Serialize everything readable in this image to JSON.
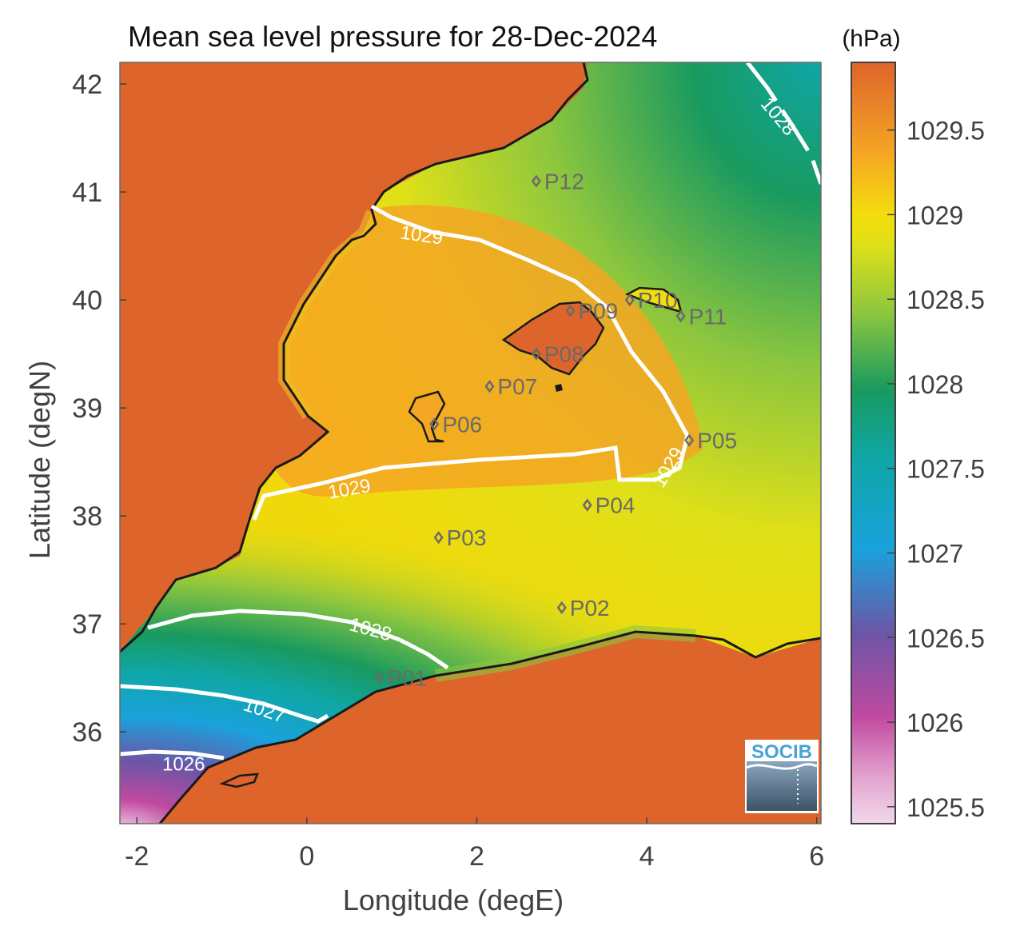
{
  "title": "Mean sea level pressure for 28-Dec-2024",
  "xlabel": "Longitude (degE)",
  "ylabel": "Latitude (degN)",
  "colorbar": {
    "unit": "(hPa)",
    "ticks": [
      "1029.5",
      "1029",
      "1028.5",
      "1028",
      "1027.5",
      "1027",
      "1026.5",
      "1026",
      "1025.5"
    ],
    "tick_values": [
      1029.5,
      1029,
      1028.5,
      1028,
      1027.5,
      1027,
      1026.5,
      1026,
      1025.5
    ],
    "range": [
      1025.4,
      1029.9
    ]
  },
  "x_ticks": [
    "-2",
    "0",
    "2",
    "4",
    "6"
  ],
  "x_tick_values": [
    -2,
    0,
    2,
    4,
    6
  ],
  "y_ticks": [
    "42",
    "41",
    "40",
    "39",
    "38",
    "37",
    "36"
  ],
  "y_tick_values": [
    42,
    41,
    40,
    39,
    38,
    37,
    36
  ],
  "xlim": [
    -2.2,
    6.05
  ],
  "ylim": [
    35.15,
    42.2
  ],
  "logo_text": "SOCIB",
  "stations": [
    {
      "label": "P01",
      "lon": 0.85,
      "lat": 36.5
    },
    {
      "label": "P02",
      "lon": 3.0,
      "lat": 37.15
    },
    {
      "label": "P03",
      "lon": 1.55,
      "lat": 37.8
    },
    {
      "label": "P04",
      "lon": 3.3,
      "lat": 38.1
    },
    {
      "label": "P05",
      "lon": 4.5,
      "lat": 38.7
    },
    {
      "label": "P06",
      "lon": 1.5,
      "lat": 38.85
    },
    {
      "label": "P07",
      "lon": 2.15,
      "lat": 39.2
    },
    {
      "label": "P08",
      "lon": 2.7,
      "lat": 39.5
    },
    {
      "label": "P09",
      "lon": 3.1,
      "lat": 39.9
    },
    {
      "label": "P10",
      "lon": 3.8,
      "lat": 40.0
    },
    {
      "label": "P11",
      "lon": 4.4,
      "lat": 39.85
    },
    {
      "label": "P12",
      "lon": 2.7,
      "lat": 41.1
    }
  ],
  "contour_labels": [
    {
      "text": "1029",
      "lon": 1.35,
      "lat": 40.6,
      "rot": 8
    },
    {
      "text": "1029",
      "lon": 0.5,
      "lat": 38.25,
      "rot": -10
    },
    {
      "text": "1029",
      "lon": 4.25,
      "lat": 38.45,
      "rot": -60
    },
    {
      "text": "1028",
      "lon": 0.75,
      "lat": 36.95,
      "rot": 15
    },
    {
      "text": "1028",
      "lon": 5.55,
      "lat": 41.7,
      "rot": 50
    },
    {
      "text": "1027",
      "lon": -0.5,
      "lat": 36.2,
      "rot": 18
    },
    {
      "text": "1026",
      "lon": -1.45,
      "lat": 35.7,
      "rot": 0
    }
  ],
  "colors": {
    "land": "#dd652b",
    "orange": "#f5a623",
    "yellow": "#f3dd0d",
    "lime": "#c5d629",
    "green": "#199a5f",
    "teal": "#0fa6a6",
    "blue": "#1aa2dc",
    "purple": "#6c55a6",
    "magenta": "#c04aa0",
    "pink": "#f2d8ea",
    "contour": "#ffffff",
    "coast": "#1a1a1a",
    "station": "#6a6a6a"
  }
}
